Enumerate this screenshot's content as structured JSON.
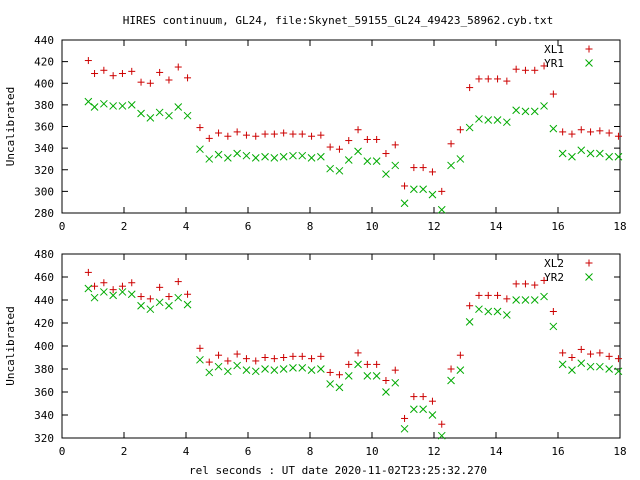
{
  "title": "HIRES continuum, GL24, file:Skynet_59155_GL24_49423_58962.cyb.txt",
  "xlabel": "rel seconds : UT date 2020-11-02T23:25:32.270",
  "chart_data": [
    {
      "type": "scatter",
      "ylabel": "Uncalibrated",
      "xlim": [
        0,
        18
      ],
      "ylim": [
        280,
        440
      ],
      "xticks": [
        0,
        2,
        4,
        6,
        8,
        10,
        12,
        14,
        16,
        18
      ],
      "yticks": [
        280,
        300,
        320,
        340,
        360,
        380,
        400,
        420,
        440
      ],
      "legend": "top-right",
      "series": [
        {
          "name": "XL1",
          "marker": "plus",
          "color": "#cc0000",
          "x": [
            0.85,
            1.05,
            1.35,
            1.65,
            1.95,
            2.25,
            2.55,
            2.85,
            3.15,
            3.45,
            3.75,
            4.05,
            4.45,
            4.75,
            5.05,
            5.35,
            5.65,
            5.95,
            6.25,
            6.55,
            6.85,
            7.15,
            7.45,
            7.75,
            8.05,
            8.35,
            8.65,
            8.95,
            9.25,
            9.55,
            9.85,
            10.15,
            10.45,
            10.75,
            11.05,
            11.35,
            11.65,
            11.95,
            12.25,
            12.55,
            12.85,
            13.15,
            13.45,
            13.75,
            14.05,
            14.35,
            14.65,
            14.95,
            15.25,
            15.55,
            15.85,
            16.15,
            16.45,
            16.75,
            17.05,
            17.35,
            17.65,
            17.95
          ],
          "values": [
            421,
            409,
            412,
            407,
            409,
            411,
            401,
            400,
            410,
            403,
            415,
            405,
            359,
            349,
            354,
            351,
            355,
            352,
            351,
            353,
            353,
            354,
            353,
            353,
            351,
            352,
            341,
            339,
            347,
            357,
            348,
            348,
            335,
            343,
            305,
            322,
            322,
            318,
            300,
            344,
            357,
            396,
            404,
            404,
            404,
            402,
            413,
            412,
            412,
            416,
            390,
            355,
            353,
            357,
            355,
            356,
            354,
            351
          ]
        },
        {
          "name": "YR1",
          "marker": "cross",
          "color": "#00aa00",
          "x": [
            0.85,
            1.05,
            1.35,
            1.65,
            1.95,
            2.25,
            2.55,
            2.85,
            3.15,
            3.45,
            3.75,
            4.05,
            4.45,
            4.75,
            5.05,
            5.35,
            5.65,
            5.95,
            6.25,
            6.55,
            6.85,
            7.15,
            7.45,
            7.75,
            8.05,
            8.35,
            8.65,
            8.95,
            9.25,
            9.55,
            9.85,
            10.15,
            10.45,
            10.75,
            11.05,
            11.35,
            11.65,
            11.95,
            12.25,
            12.55,
            12.85,
            13.15,
            13.45,
            13.75,
            14.05,
            14.35,
            14.65,
            14.95,
            15.25,
            15.55,
            15.85,
            16.15,
            16.45,
            16.75,
            17.05,
            17.35,
            17.65,
            17.95
          ],
          "values": [
            383,
            378,
            381,
            379,
            379,
            380,
            372,
            368,
            373,
            370,
            378,
            370,
            339,
            330,
            334,
            331,
            335,
            333,
            331,
            332,
            331,
            332,
            333,
            333,
            331,
            332,
            321,
            319,
            329,
            337,
            328,
            328,
            316,
            324,
            289,
            302,
            302,
            297,
            283,
            324,
            330,
            359,
            367,
            366,
            366,
            364,
            375,
            374,
            374,
            379,
            358,
            335,
            332,
            338,
            335,
            335,
            332,
            332
          ]
        }
      ]
    },
    {
      "type": "scatter",
      "ylabel": "Uncalibrated",
      "xlim": [
        0,
        18
      ],
      "ylim": [
        320,
        480
      ],
      "xticks": [
        0,
        2,
        4,
        6,
        8,
        10,
        12,
        14,
        16,
        18
      ],
      "yticks": [
        320,
        340,
        360,
        380,
        400,
        420,
        440,
        460,
        480
      ],
      "legend": "top-right",
      "series": [
        {
          "name": "XL2",
          "marker": "plus",
          "color": "#cc0000",
          "x": [
            0.85,
            1.05,
            1.35,
            1.65,
            1.95,
            2.25,
            2.55,
            2.85,
            3.15,
            3.45,
            3.75,
            4.05,
            4.45,
            4.75,
            5.05,
            5.35,
            5.65,
            5.95,
            6.25,
            6.55,
            6.85,
            7.15,
            7.45,
            7.75,
            8.05,
            8.35,
            8.65,
            8.95,
            9.25,
            9.55,
            9.85,
            10.15,
            10.45,
            10.75,
            11.05,
            11.35,
            11.65,
            11.95,
            12.25,
            12.55,
            12.85,
            13.15,
            13.45,
            13.75,
            14.05,
            14.35,
            14.65,
            14.95,
            15.25,
            15.55,
            15.85,
            16.15,
            16.45,
            16.75,
            17.05,
            17.35,
            17.65,
            17.95
          ],
          "values": [
            464,
            452,
            455,
            449,
            452,
            455,
            443,
            441,
            451,
            443,
            456,
            445,
            398,
            386,
            392,
            387,
            393,
            389,
            387,
            390,
            389,
            390,
            391,
            391,
            389,
            391,
            377,
            375,
            384,
            394,
            384,
            384,
            370,
            379,
            337,
            356,
            356,
            352,
            332,
            380,
            392,
            435,
            444,
            444,
            444,
            441,
            454,
            454,
            453,
            457,
            430,
            394,
            390,
            397,
            393,
            394,
            391,
            389
          ]
        },
        {
          "name": "YR2",
          "marker": "cross",
          "color": "#00aa00",
          "x": [
            0.85,
            1.05,
            1.35,
            1.65,
            1.95,
            2.25,
            2.55,
            2.85,
            3.15,
            3.45,
            3.75,
            4.05,
            4.45,
            4.75,
            5.05,
            5.35,
            5.65,
            5.95,
            6.25,
            6.55,
            6.85,
            7.15,
            7.45,
            7.75,
            8.05,
            8.35,
            8.65,
            8.95,
            9.25,
            9.55,
            9.85,
            10.15,
            10.45,
            10.75,
            11.05,
            11.35,
            11.65,
            11.95,
            12.25,
            12.55,
            12.85,
            13.15,
            13.45,
            13.75,
            14.05,
            14.35,
            14.65,
            14.95,
            15.25,
            15.55,
            15.85,
            16.15,
            16.45,
            16.75,
            17.05,
            17.35,
            17.65,
            17.95
          ],
          "values": [
            450,
            442,
            447,
            444,
            447,
            445,
            435,
            432,
            438,
            435,
            442,
            436,
            388,
            377,
            382,
            378,
            383,
            379,
            378,
            380,
            379,
            380,
            381,
            381,
            379,
            380,
            367,
            364,
            374,
            384,
            374,
            374,
            360,
            368,
            328,
            345,
            345,
            340,
            322,
            370,
            379,
            421,
            432,
            430,
            430,
            427,
            440,
            440,
            440,
            443,
            417,
            384,
            379,
            385,
            382,
            382,
            380,
            378
          ]
        }
      ]
    }
  ]
}
